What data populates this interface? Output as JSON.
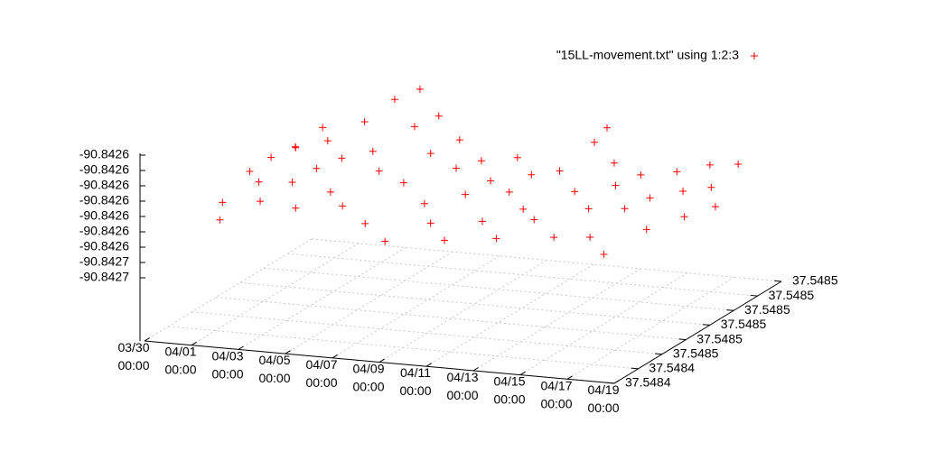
{
  "chart_data": {
    "type": "scatter3d",
    "legend": "top-right",
    "grid": true,
    "xlim": [
      "03/30 00:00",
      "04/19 00:00"
    ],
    "xticks": [
      "03/30 00:00",
      "04/01 00:00",
      "04/03 00:00",
      "04/05 00:00",
      "04/07 00:00",
      "04/09 00:00",
      "04/11 00:00",
      "04/13 00:00",
      "04/15 00:00",
      "04/17 00:00",
      "04/19 00:00"
    ],
    "ylim": [
      37.54843,
      37.5485
    ],
    "yticks": [
      {
        "value": 37.54843,
        "label": "37.5484"
      },
      {
        "value": 37.54844,
        "label": "37.5484"
      },
      {
        "value": 37.54845,
        "label": "37.5485"
      },
      {
        "value": 37.54846,
        "label": "37.5485"
      },
      {
        "value": 37.54847,
        "label": "37.5485"
      },
      {
        "value": 37.54848,
        "label": "37.5485"
      },
      {
        "value": 37.54849,
        "label": "37.5485"
      },
      {
        "value": 37.5485,
        "label": "37.5485"
      }
    ],
    "zlim": [
      -90.84266,
      -90.84258
    ],
    "zticks": [
      {
        "value": -90.84266,
        "label": "-90.8427"
      },
      {
        "value": -90.84265,
        "label": "-90.8427"
      },
      {
        "value": -90.84264,
        "label": "-90.8426"
      },
      {
        "value": -90.84263,
        "label": "-90.8426"
      },
      {
        "value": -90.84262,
        "label": "-90.8426"
      },
      {
        "value": -90.84261,
        "label": "-90.8426"
      },
      {
        "value": -90.8426,
        "label": "-90.8426"
      },
      {
        "value": -90.84259,
        "label": "-90.8426"
      },
      {
        "value": -90.84258,
        "label": "-90.8426"
      }
    ],
    "series": [
      {
        "name": "\"15LL-movement.txt\" using 1:2:3",
        "color": "#ff0000",
        "x": [
          "03/30 04:00",
          "03/30 10:00",
          "03/30 16:00",
          "03/30 22:00",
          "03/31 05:00",
          "03/31 13:00",
          "03/31 21:00",
          "04/01 04:00",
          "04/01 12:00",
          "04/01 20:00",
          "04/02 03:00",
          "04/02 11:00",
          "04/02 19:00",
          "04/03 02:00",
          "04/03 08:00",
          "04/03 16:00",
          "04/03 23:00",
          "04/04 06:00",
          "04/04 14:00",
          "04/04 20:00",
          "04/05 03:00",
          "04/05 10:00",
          "04/05 18:00",
          "04/06 01:00",
          "04/06 09:00",
          "04/06 17:00",
          "04/07 00:00",
          "04/07 08:00",
          "04/07 16:00",
          "04/08 00:00",
          "04/08 08:00",
          "04/08 16:00",
          "04/09 00:00",
          "04/09 08:00",
          "04/09 16:00",
          "04/10 00:00",
          "04/10 08:00",
          "04/10 16:00",
          "04/11 00:00",
          "04/11 08:00",
          "04/11 16:00",
          "04/12 00:00",
          "04/12 08:00",
          "04/12 16:00",
          "04/13 00:00",
          "04/13 06:00",
          "04/13 14:00",
          "04/13 22:00",
          "04/14 06:00",
          "04/14 14:00",
          "04/14 22:00",
          "04/15 06:00",
          "04/15 14:00",
          "04/15 22:00",
          "04/16 06:00",
          "04/16 14:00",
          "04/16 22:00",
          "04/17 06:00",
          "04/17 14:00",
          "04/17 22:00",
          "04/18 06:00",
          "04/18 14:00",
          "04/18 20:00"
        ],
        "y": [
          37.548461,
          37.54847,
          37.548455,
          37.548474,
          37.548466,
          37.548478,
          37.54846,
          37.548472,
          37.54848,
          37.548464,
          37.548476,
          37.548468,
          37.548456,
          37.548482,
          37.54847,
          37.548462,
          37.548486,
          37.548474,
          37.548458,
          37.548488,
          37.548468,
          37.54848,
          37.548456,
          37.548484,
          37.548466,
          37.548474,
          37.548452,
          37.54848,
          37.548462,
          37.548472,
          37.548458,
          37.548476,
          37.548466,
          37.548454,
          37.54847,
          37.548478,
          37.54846,
          37.548468,
          37.548474,
          37.548456,
          37.548464,
          37.548476,
          37.548462,
          37.548484,
          37.548486,
          37.54847,
          37.548458,
          37.54848,
          37.548466,
          37.548474,
          37.54846,
          37.548478,
          37.548468,
          37.548456,
          37.548472,
          37.54848,
          37.548464,
          37.548476,
          37.548484,
          37.54847,
          37.548478,
          37.548486,
          37.548474
        ],
        "z": [
          -90.84264,
          -90.842628,
          -90.842645,
          -90.842622,
          -90.84263,
          -90.842618,
          -90.842636,
          -90.842612,
          -90.842606,
          -90.842626,
          -90.84261,
          -90.84262,
          -90.842634,
          -90.842602,
          -90.842614,
          -90.842628,
          -90.84259,
          -90.842612,
          -90.842632,
          -90.842584,
          -90.842618,
          -90.8426,
          -90.84264,
          -90.842596,
          -90.842622,
          -90.84261,
          -90.842646,
          -90.842606,
          -90.84263,
          -90.842616,
          -90.842638,
          -90.842614,
          -90.842626,
          -90.842644,
          -90.84262,
          -90.842612,
          -90.842636,
          -90.842624,
          -90.842618,
          -90.842642,
          -90.84263,
          -90.842616,
          -90.842634,
          -90.842604,
          -90.842596,
          -90.842622,
          -90.84264,
          -90.842612,
          -90.842628,
          -90.84262,
          -90.84264,
          -90.842616,
          -90.842628,
          -90.842646,
          -90.842624,
          -90.842614,
          -90.842636,
          -90.842622,
          -90.842612,
          -90.842632,
          -90.84262,
          -90.842612,
          -90.842628
        ]
      }
    ]
  }
}
